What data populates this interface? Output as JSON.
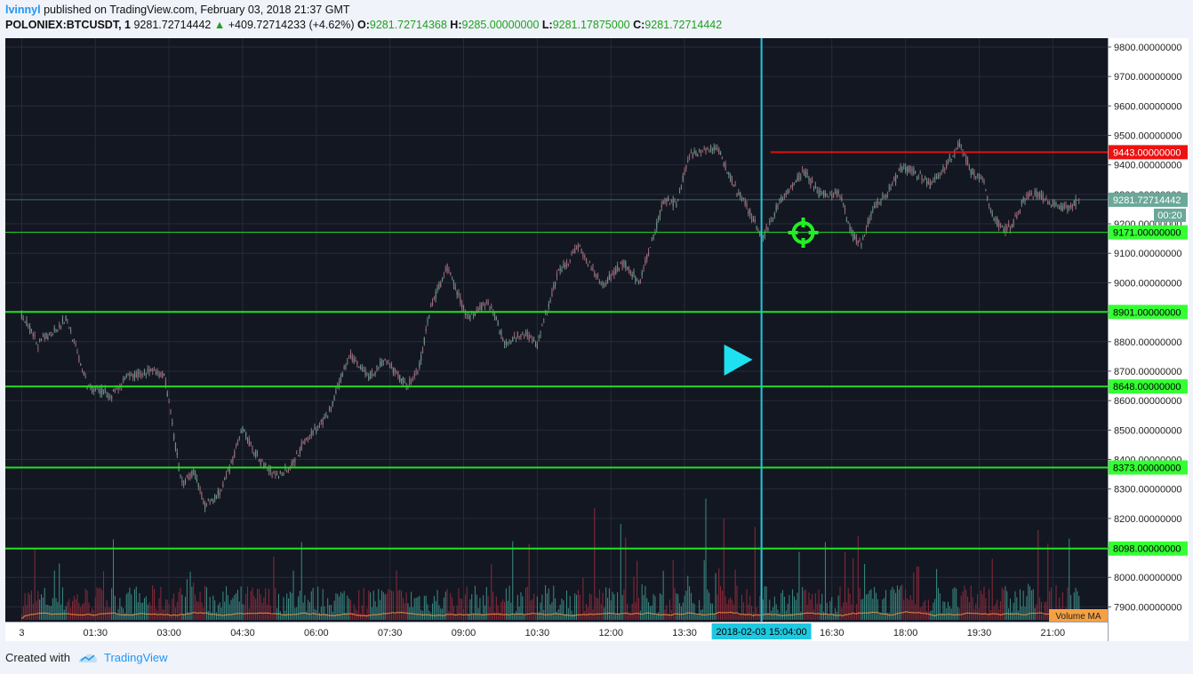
{
  "header": {
    "author": "lvinnyl",
    "published_text": "published on TradingView.com, February 03, 2018 21:37 GMT",
    "symbol": "POLONIEX:BTCUSDT, 1",
    "last_price": "9281.72714442",
    "change_arrow": "▲",
    "change": "+409.72714233 (+4.62%)",
    "open_label": "O:",
    "open": "9281.72714368",
    "high_label": "H:",
    "high": "9285.00000000",
    "low_label": "L:",
    "low": "9281.17875000",
    "close_label": "C:",
    "close": "9281.72714442"
  },
  "footer": {
    "created_with": "Created with",
    "brand": "TradingView"
  },
  "colors": {
    "background": "#131722",
    "grid": "#262b39",
    "green_line": "#22e022",
    "red_line": "#e01010",
    "cursor": "#1ec8e0",
    "candle_up": "#6e8e86",
    "candle_down": "#9a6a78",
    "vol_up": "#3a8c84",
    "vol_down": "#8c2a3a",
    "volume_ma": "#f5a043"
  },
  "chart_data": {
    "type": "candlestick",
    "ylim": [
      7850,
      9830
    ],
    "y_ticks": [
      "9800.00000000",
      "9700.00000000",
      "9600.00000000",
      "9500.00000000",
      "9400.00000000",
      "9300.00000000",
      "9200.00000000",
      "9100.00000000",
      "9000.00000000",
      "8900.00000000",
      "8800.00000000",
      "8700.00000000",
      "8600.00000000",
      "8500.00000000",
      "8400.00000000",
      "8300.00000000",
      "8200.00000000",
      "8100.00000000",
      "8000.00000000",
      "7900.00000000"
    ],
    "x_ticks": [
      "3",
      "01:30",
      "03:00",
      "04:30",
      "06:00",
      "07:30",
      "09:00",
      "10:30",
      "12:00",
      "13:30",
      "16:30",
      "18:00",
      "19:30",
      "21:00"
    ],
    "x_tick_minutes": [
      0,
      90,
      180,
      270,
      360,
      450,
      540,
      630,
      720,
      810,
      990,
      1080,
      1170,
      1260
    ],
    "x_range_minutes": [
      -20,
      1327
    ],
    "last_bar_minute": 1292,
    "price_path": [
      [
        -20,
        8840
      ],
      [
        0,
        8890
      ],
      [
        20,
        8790
      ],
      [
        55,
        8880
      ],
      [
        80,
        8650
      ],
      [
        110,
        8620
      ],
      [
        130,
        8680
      ],
      [
        155,
        8700
      ],
      [
        175,
        8680
      ],
      [
        195,
        8320
      ],
      [
        210,
        8360
      ],
      [
        225,
        8240
      ],
      [
        245,
        8300
      ],
      [
        270,
        8500
      ],
      [
        290,
        8400
      ],
      [
        310,
        8340
      ],
      [
        330,
        8380
      ],
      [
        345,
        8460
      ],
      [
        375,
        8550
      ],
      [
        400,
        8760
      ],
      [
        425,
        8680
      ],
      [
        445,
        8740
      ],
      [
        470,
        8650
      ],
      [
        485,
        8700
      ],
      [
        500,
        8920
      ],
      [
        520,
        9050
      ],
      [
        545,
        8880
      ],
      [
        570,
        8940
      ],
      [
        590,
        8800
      ],
      [
        615,
        8830
      ],
      [
        630,
        8790
      ],
      [
        655,
        9030
      ],
      [
        680,
        9120
      ],
      [
        710,
        8990
      ],
      [
        735,
        9070
      ],
      [
        755,
        9000
      ],
      [
        785,
        9280
      ],
      [
        800,
        9270
      ],
      [
        815,
        9430
      ],
      [
        840,
        9450
      ],
      [
        850,
        9460
      ],
      [
        870,
        9330
      ],
      [
        890,
        9240
      ],
      [
        905,
        9150
      ],
      [
        925,
        9270
      ],
      [
        955,
        9380
      ],
      [
        975,
        9300
      ],
      [
        1000,
        9300
      ],
      [
        1015,
        9160
      ],
      [
        1025,
        9130
      ],
      [
        1040,
        9250
      ],
      [
        1060,
        9310
      ],
      [
        1075,
        9390
      ],
      [
        1090,
        9380
      ],
      [
        1110,
        9330
      ],
      [
        1125,
        9380
      ],
      [
        1145,
        9470
      ],
      [
        1160,
        9380
      ],
      [
        1175,
        9350
      ],
      [
        1185,
        9230
      ],
      [
        1200,
        9180
      ],
      [
        1210,
        9190
      ],
      [
        1225,
        9290
      ],
      [
        1240,
        9300
      ],
      [
        1260,
        9270
      ],
      [
        1280,
        9250
      ],
      [
        1292,
        9281.73
      ]
    ],
    "volume_spikes": [
      [
        210,
        0.28
      ],
      [
        510,
        0.11
      ],
      [
        600,
        0.59
      ],
      [
        700,
        0.84
      ],
      [
        796,
        0.45
      ],
      [
        836,
        0.91
      ],
      [
        858,
        0.76
      ],
      [
        950,
        0.51
      ],
      [
        1030,
        0.42
      ],
      [
        1095,
        0.4
      ],
      [
        1230,
        0.27
      ]
    ],
    "horizontal_levels": [
      {
        "label": "9171.00000000",
        "value": 9171,
        "color": "green",
        "thin": true
      },
      {
        "label": "8901.00000000",
        "value": 8901,
        "color": "green"
      },
      {
        "label": "8648.00000000",
        "value": 8648,
        "color": "green"
      },
      {
        "label": "8373.00000000",
        "value": 8373,
        "color": "green"
      },
      {
        "label": "8098.00000000",
        "value": 8098,
        "color": "green"
      }
    ],
    "resistance": {
      "label": "9443.00000000",
      "value": 9443,
      "start_minute": 915
    },
    "last_price_label": "9281.72714442",
    "countdown": "00:20",
    "cursor_x_label": "2018-02-03 15:04:00",
    "cursor_minute": 904,
    "crosshair_target": {
      "minute": 955,
      "value": 9170
    },
    "volume_legend": "Volume MA"
  }
}
